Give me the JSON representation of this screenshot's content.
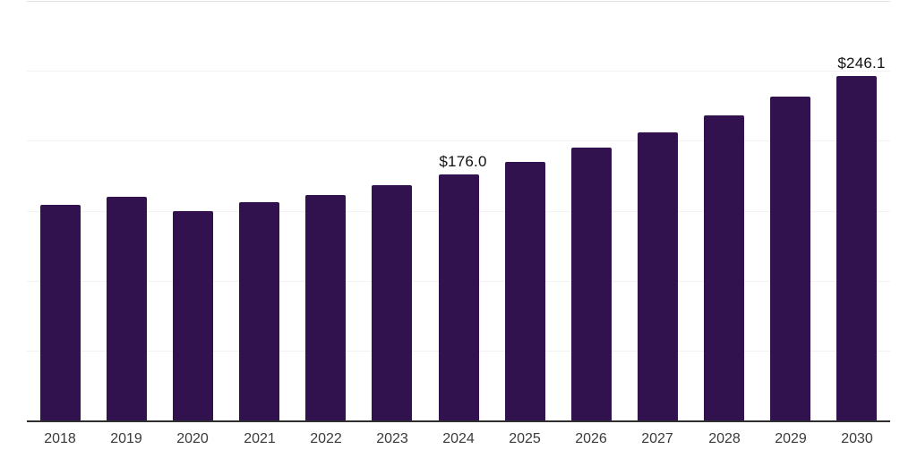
{
  "chart_data": {
    "type": "bar",
    "title": "",
    "xlabel": "",
    "ylabel": "",
    "categories": [
      "2018",
      "2019",
      "2020",
      "2021",
      "2022",
      "2023",
      "2024",
      "2025",
      "2026",
      "2027",
      "2028",
      "2029",
      "2030"
    ],
    "values": [
      154.0,
      160.0,
      150.0,
      156.0,
      161.5,
      168.3,
      176.0,
      185.0,
      195.0,
      206.0,
      218.0,
      231.5,
      246.1
    ],
    "data_labels": {
      "2024": "$176.0",
      "2030": "$246.1"
    },
    "ylim": [
      0,
      300
    ],
    "gridline_values": [
      50,
      100,
      150,
      200,
      250,
      300
    ],
    "grid_on": true,
    "legend": "none",
    "colors": {
      "bar": "#32124E",
      "gridline": "#F3F1F4",
      "gridline_top": "#E2E0E3",
      "axis": "#2F2F2F",
      "tick_label": "#3A3A3A",
      "data_label": "#111111",
      "background": "#FFFFFF"
    }
  }
}
